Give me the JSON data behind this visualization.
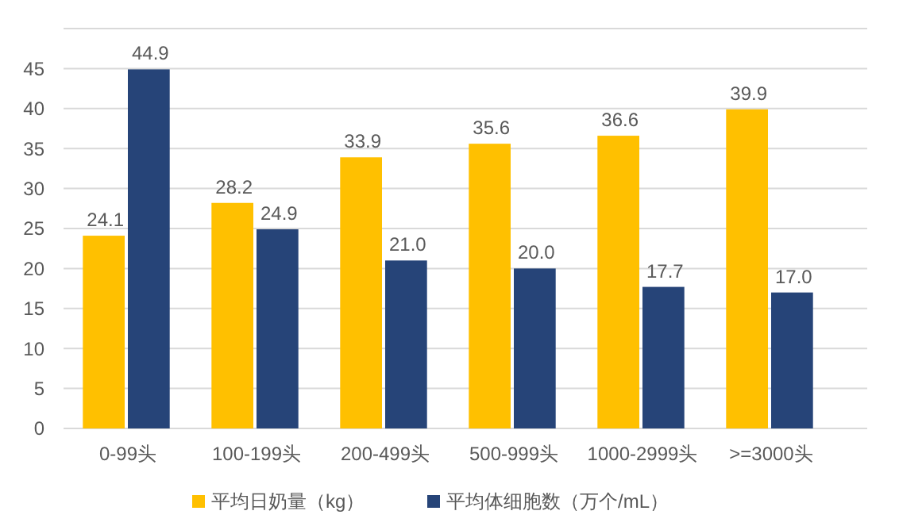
{
  "chart_data": {
    "type": "bar",
    "categories": [
      "0-99头",
      "100-199头",
      "200-499头",
      "500-999头",
      "1000-2999头",
      ">=3000头"
    ],
    "series": [
      {
        "name": "平均日奶量（kg）",
        "color": "#ffc000",
        "values": [
          24.1,
          28.2,
          33.9,
          35.6,
          36.6,
          39.9
        ],
        "value_labels": [
          "24.1",
          "28.2",
          "33.9",
          "35.6",
          "36.6",
          "39.9"
        ]
      },
      {
        "name": "平均体细胞数（万个/mL）",
        "color": "#264478",
        "values": [
          44.9,
          24.9,
          21.0,
          20.0,
          17.7,
          17.0
        ],
        "value_labels": [
          "44.9",
          "24.9",
          "21.0",
          "20.0",
          "17.7",
          "17.0"
        ]
      }
    ],
    "ylim": [
      0,
      50
    ],
    "yticks": [
      0,
      5,
      10,
      15,
      20,
      25,
      30,
      35,
      40,
      45,
      {
        "value": 50,
        "label": null
      }
    ],
    "grid": "y",
    "legend": "bottom"
  }
}
